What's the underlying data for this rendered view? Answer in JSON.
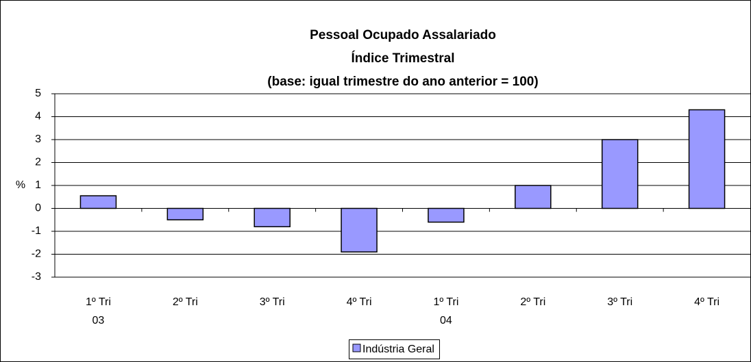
{
  "chart_data": {
    "type": "bar",
    "title": [
      "Pessoal Ocupado Assalariado",
      "Índice Trimestral",
      "(base: igual trimestre do ano anterior = 100)"
    ],
    "y_label": "%",
    "categories": [
      "1º Tri",
      "2º Tri",
      "3º Tri",
      "4º Tri",
      "1º Tri",
      "2º Tri",
      "3º Tri",
      "4º Tri"
    ],
    "years": [
      "03",
      null,
      null,
      null,
      "04",
      null,
      null,
      null
    ],
    "series": [
      {
        "name": "Indústria Geral",
        "color": "#9999ff",
        "values": [
          0.55,
          -0.5,
          -0.8,
          -1.9,
          -0.6,
          1.0,
          3.0,
          4.3
        ]
      }
    ],
    "ylim": [
      -3,
      5
    ],
    "yticks": [
      -3,
      -2,
      -1,
      0,
      1,
      2,
      3,
      4,
      5
    ],
    "grid": true
  }
}
